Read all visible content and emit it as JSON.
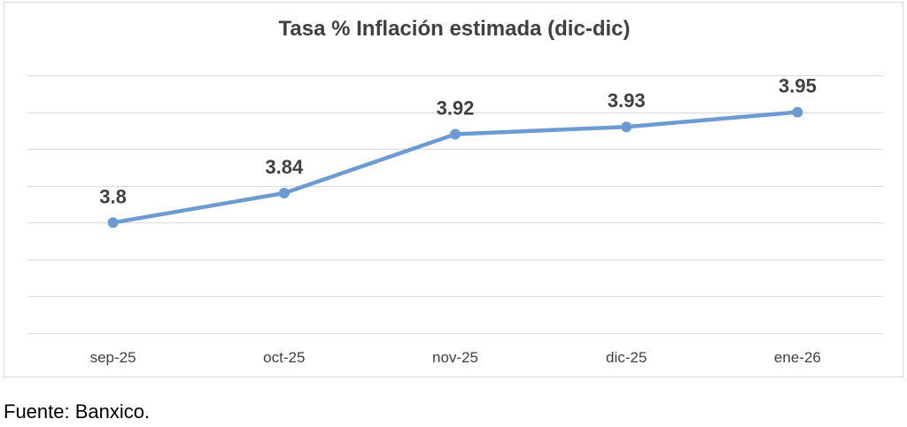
{
  "chart_data": {
    "type": "line",
    "title": "Tasa % Inflación estimada (dic-dic)",
    "categories": [
      "sep-25",
      "oct-25",
      "nov-25",
      "dic-25",
      "ene-26"
    ],
    "series": [
      {
        "values": [
          3.8,
          3.84,
          3.92,
          3.93,
          3.95
        ],
        "color": "#6b9bd1"
      }
    ],
    "data_labels": [
      "3.8",
      "3.84",
      "3.92",
      "3.93",
      "3.95"
    ],
    "ylim": [
      3.65,
      4.0
    ],
    "ytick_step": 0.05,
    "y_tick_labels_shown": false,
    "grid": true,
    "legend": "none"
  },
  "source": "Fuente: Banxico."
}
